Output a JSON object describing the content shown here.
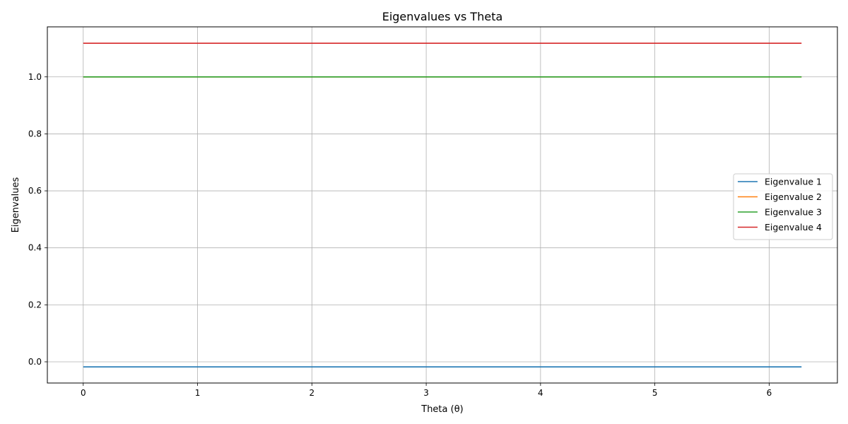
{
  "chart_data": {
    "type": "line",
    "title": "Eigenvalues vs Theta",
    "xlabel": "Theta (θ)",
    "ylabel": "Eigenvalues",
    "xlim": [
      -0.314,
      6.597
    ],
    "ylim": [
      -0.0744,
      1.1755
    ],
    "xticks": [
      0,
      1,
      2,
      3,
      4,
      5,
      6
    ],
    "xtick_labels": [
      "0",
      "1",
      "2",
      "3",
      "4",
      "5",
      "6"
    ],
    "yticks": [
      0.0,
      0.2,
      0.4,
      0.6,
      0.8,
      1.0
    ],
    "ytick_labels": [
      "0.0",
      "0.2",
      "0.4",
      "0.6",
      "0.8",
      "1.0"
    ],
    "grid": true,
    "legend_position": "center-right",
    "x": [
      0,
      6.2832
    ],
    "series": [
      {
        "name": "Eigenvalue 1",
        "color": "#1f77b4",
        "values": [
          -0.0178,
          -0.0178
        ]
      },
      {
        "name": "Eigenvalue 2",
        "color": "#ff7f0e",
        "values": [
          1.0,
          1.0
        ]
      },
      {
        "name": "Eigenvalue 3",
        "color": "#2ca02c",
        "values": [
          1.0,
          1.0
        ]
      },
      {
        "name": "Eigenvalue 4",
        "color": "#d62728",
        "values": [
          1.118,
          1.118
        ]
      }
    ]
  }
}
